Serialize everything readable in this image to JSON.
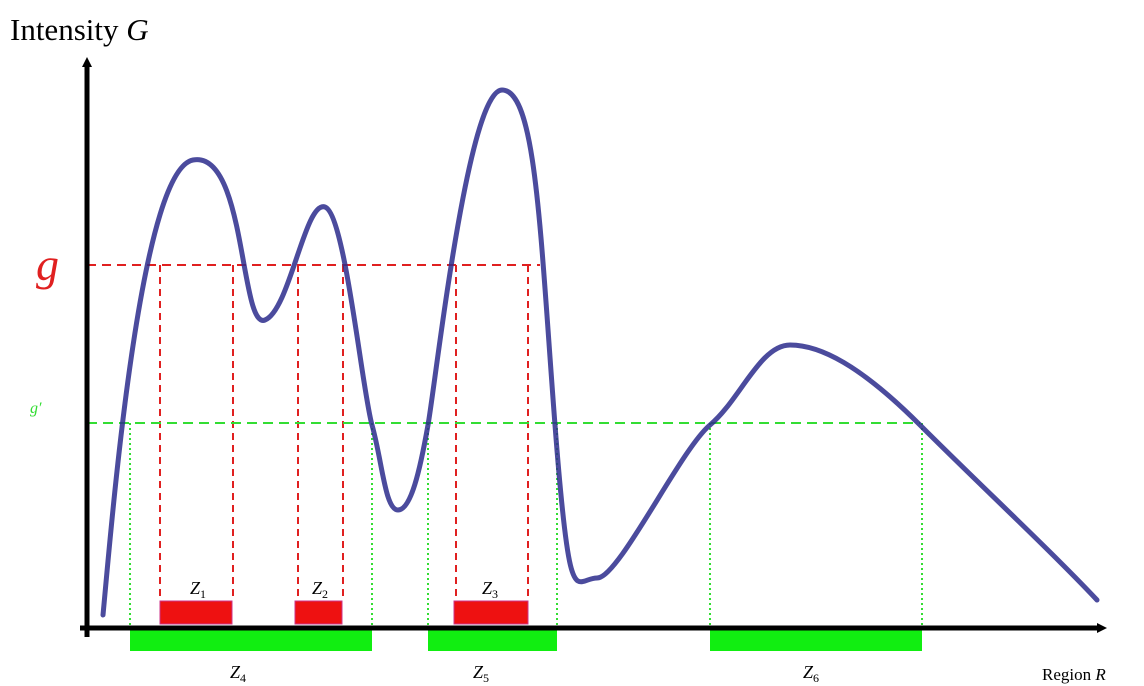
{
  "y_axis": {
    "label": "Intensity",
    "variable": "G"
  },
  "x_axis": {
    "label": "Region",
    "variable": "R"
  },
  "thresholds": [
    {
      "label": "g"
    },
    {
      "label": "g′"
    }
  ],
  "zones": [
    {
      "letter": "Z",
      "subscript": "1"
    },
    {
      "letter": "Z",
      "subscript": "2"
    },
    {
      "letter": "Z",
      "subscript": "3"
    },
    {
      "letter": "Z",
      "subscript": "4"
    },
    {
      "letter": "Z",
      "subscript": "5"
    },
    {
      "letter": "Z",
      "subscript": "6"
    }
  ]
}
